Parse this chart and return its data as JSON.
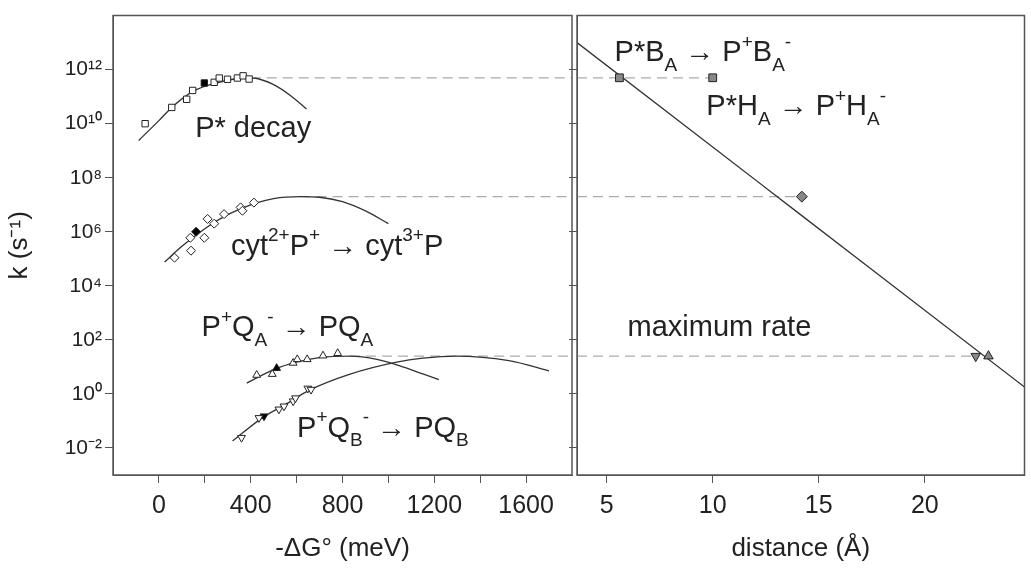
{
  "chart_data": [
    {
      "type": "scatter",
      "xlabel": "-ΔG° (meV)",
      "ylabel": "k (s⁻¹)",
      "log": "y",
      "grid": false,
      "legend": false,
      "xlim": [
        -200,
        1800
      ],
      "ylim": [
        0.001,
        100000000000000.0
      ],
      "xticks": [
        0,
        {
          "value": 200,
          "label": null
        },
        400,
        {
          "value": 600,
          "label": null
        },
        800,
        {
          "value": 1000,
          "label": null
        },
        1200,
        {
          "value": 1400,
          "label": null
        },
        1600
      ],
      "yticks": [
        {
          "value": 0.01,
          "label": "10⁻²"
        },
        {
          "value": 1,
          "label": "10⁰"
        },
        {
          "value": 100,
          "label": "10²"
        },
        {
          "value": 10000,
          "label": "10⁴"
        },
        {
          "value": 1000000,
          "label": "10⁶"
        },
        {
          "value": 100000000,
          "label": "10⁸"
        },
        {
          "value": 10000000000,
          "label": "10¹⁰"
        },
        {
          "value": 1000000000000,
          "label": "10¹²"
        }
      ],
      "series": [
        {
          "type": "line",
          "marker": "none",
          "color": "#333333",
          "x": [
            -88,
            0,
            56,
            150,
            250,
            350,
            400,
            500,
            580,
            643
          ],
          "values": [
            2400000000.0,
            13000000000.0,
            40000000000.0,
            160000000000.0,
            320000000000.0,
            480000000000.0,
            500000000000.0,
            280000000000.0,
            100000000000.0,
            35000000000.0
          ]
        },
        {
          "type": "line",
          "marker": "none",
          "color": "#333333",
          "x": [
            25,
            100,
            200,
            300,
            400,
            500,
            617,
            700,
            800,
            900,
            1000
          ],
          "values": [
            76000.0,
            290000.0,
            1300000.0,
            4300000.0,
            10000000.0,
            17000000.0,
            20000000.0,
            19000000.0,
            13000000.0,
            5900000.0,
            2000000.0
          ]
        },
        {
          "type": "line",
          "marker": "none",
          "color": "#333333",
          "x": [
            383,
            500,
            600,
            700,
            833,
            950,
            1050,
            1150,
            1220
          ],
          "values": [
            2.5,
            8,
            15,
            22,
            25,
            19,
            11,
            5.5,
            3.4
          ]
        },
        {
          "type": "line",
          "marker": "none",
          "color": "#333333",
          "x": [
            321,
            450,
            550,
            650,
            833,
            1036,
            1150,
            1296,
            1525,
            1700
          ],
          "values": [
            0.018,
            0.13,
            0.4,
            1.3,
            5.4,
            15,
            21,
            25,
            17,
            7.2
          ]
        },
        {
          "type": "line",
          "marker": "none",
          "line_style": "dashed",
          "color": "#aaaaaa",
          "x": [
            400,
            1800
          ],
          "values": [
            500000000000.0,
            500000000000.0
          ]
        },
        {
          "type": "line",
          "marker": "none",
          "line_style": "dashed",
          "color": "#aaaaaa",
          "x": [
            617,
            1800
          ],
          "values": [
            20000000.0,
            20000000.0
          ]
        },
        {
          "type": "line",
          "marker": "none",
          "line_style": "dashed",
          "color": "#aaaaaa",
          "x": [
            833,
            1800
          ],
          "values": [
            25,
            25
          ]
        },
        {
          "type": "scatter",
          "marker": "square",
          "color": "#ffffff",
          "x": [
            -60,
            56,
            121,
            147,
            241,
            263,
            299,
            342,
            367,
            393
          ],
          "values": [
            10000000000.0,
            40000000000.0,
            80000000000.0,
            170000000000.0,
            340000000000.0,
            490000000000.0,
            440000000000.0,
            490000000000.0,
            590000000000.0,
            450000000000.0
          ]
        },
        {
          "type": "scatter",
          "marker": "square",
          "color": "#000000",
          "x": [
            198
          ],
          "values": [
            320000000000.0
          ]
        },
        {
          "type": "scatter",
          "marker": "diamond",
          "color": "#ffffff",
          "x": [
            68,
            140,
            137,
            198,
            212,
            241,
            284,
            356,
            364,
            414
          ],
          "values": [
            110000.0,
            200000.0,
            600000.0,
            600000.0,
            3000000.0,
            2000000.0,
            4500000.0,
            8000000.0,
            6000000.0,
            12000000.0
          ]
        },
        {
          "type": "scatter",
          "marker": "diamond",
          "color": "#000000",
          "x": [
            162
          ],
          "values": [
            1000000.0
          ]
        },
        {
          "type": "scatter",
          "marker": "triangle",
          "color": "#ffffff",
          "x": [
            426,
            494,
            585,
            603,
            646,
            715,
            779
          ],
          "values": [
            5,
            5.4,
            14,
            19,
            19,
            26,
            32
          ]
        },
        {
          "type": "scatter",
          "marker": "triangle",
          "color": "#000000",
          "x": [
            513
          ],
          "values": [
            9
          ]
        },
        {
          "type": "scatter",
          "marker": "triangle-down",
          "color": "#ffffff",
          "x": [
            360,
            436,
            523,
            545,
            585,
            595,
            649,
            663
          ],
          "values": [
            0.024,
            0.13,
            0.27,
            0.35,
            0.54,
            0.7,
            1.6,
            1.45
          ]
        },
        {
          "type": "scatter",
          "marker": "triangle-down",
          "color": "#000000",
          "x": [
            458
          ],
          "values": [
            0.15
          ]
        }
      ],
      "annotations": [
        "P* decay",
        "cyt$^{2+}$P$^{+}$ → cyt$^{3+}$P",
        "P$^{+}$Q$_{A}$$^{-}$ → PQ$_{A}$",
        "P$^{+}$Q$_{B}$$^{-}$ → PQ$_{B}$"
      ]
    },
    {
      "type": "scatter",
      "xlabel": "distance (Å)",
      "log": "y",
      "grid": false,
      "legend": false,
      "tick_labels": "x",
      "xlim": [
        3.6,
        24.7
      ],
      "ylim": [
        0.001,
        100000000000000.0
      ],
      "xticks": [
        5,
        10,
        15,
        20
      ],
      "yticks": [
        {
          "value": 0.01,
          "label": null
        },
        {
          "value": 1,
          "label": null
        },
        {
          "value": 100,
          "label": null
        },
        {
          "value": 10000,
          "label": null
        },
        {
          "value": 1000000,
          "label": null
        },
        {
          "value": 100000000,
          "label": null
        },
        {
          "value": 10000000000,
          "label": null
        },
        {
          "value": 1000000000000,
          "label": null
        }
      ],
      "series": [
        {
          "type": "line",
          "marker": "none",
          "color": "#333333",
          "x": [
            3.6,
            24.7
          ],
          "values": [
            10000000000000.0,
            1.8
          ]
        },
        {
          "type": "line",
          "marker": "none",
          "line_style": "dashed",
          "color": "#aaaaaa",
          "x": [
            3.6,
            10
          ],
          "values": [
            500000000000.0,
            500000000000.0
          ]
        },
        {
          "type": "line",
          "marker": "none",
          "line_style": "dashed",
          "color": "#aaaaaa",
          "x": [
            3.6,
            14.2
          ],
          "values": [
            20000000.0,
            20000000.0
          ]
        },
        {
          "type": "line",
          "marker": "none",
          "line_style": "dashed",
          "color": "#aaaaaa",
          "x": [
            3.6,
            22.4
          ],
          "values": [
            25,
            25
          ]
        },
        {
          "type": "scatter",
          "marker": "square",
          "color": "#888888",
          "x": [
            5.6,
            10
          ],
          "values": [
            500000000000.0,
            500000000000.0
          ]
        },
        {
          "type": "scatter",
          "marker": "diamond",
          "color": "#888888",
          "x": [
            14.2
          ],
          "values": [
            20000000.0
          ]
        },
        {
          "type": "scatter",
          "marker": "triangle-down",
          "color": "#888888",
          "x": [
            22.4
          ],
          "values": [
            25
          ]
        },
        {
          "type": "scatter",
          "marker": "triangle",
          "color": "#888888",
          "x": [
            23.0
          ],
          "values": [
            25
          ]
        }
      ],
      "annotations": [
        "P*B$_{A}$ → P$^{+}$B$_{A}$$^{-}$",
        "P*H$_{A}$ → P$^{+}$H$_{A}$$^{-}$",
        "maximum rate"
      ]
    }
  ]
}
